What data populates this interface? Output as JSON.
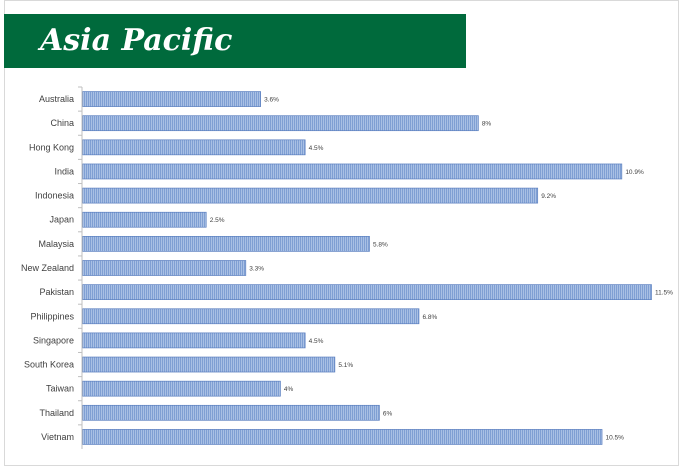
{
  "banner": {
    "title": "Asia Pacific"
  },
  "colors": {
    "banner": "#006a3c",
    "bar_fill": "#9db5dc",
    "bar_stroke": "#5a7fc0",
    "axis": "#bfbfbf"
  },
  "chart_data": {
    "type": "bar",
    "orientation": "horizontal",
    "title": "",
    "xlabel": "",
    "ylabel": "",
    "grid": false,
    "categories": [
      "Australia",
      "China",
      "Hong Kong",
      "India",
      "Indonesia",
      "Japan",
      "Malaysia",
      "New Zealand",
      "Pakistan",
      "Philippines",
      "Singapore",
      "South Korea",
      "Taiwan",
      "Thailand",
      "Vietnam"
    ],
    "values": [
      3.6,
      8,
      4.5,
      10.9,
      9.2,
      2.5,
      5.8,
      3.3,
      11.5,
      6.8,
      4.5,
      5.1,
      4,
      6,
      10.5
    ],
    "value_labels": [
      "3.6%",
      "8%",
      "4.5%",
      "10.9%",
      "9.2%",
      "2.5%",
      "5.8%",
      "3.3%",
      "11.5%",
      "6.8%",
      "4.5%",
      "5.1%",
      "4%",
      "6%",
      "10.5%"
    ],
    "xlim": [
      0,
      11.5
    ]
  }
}
